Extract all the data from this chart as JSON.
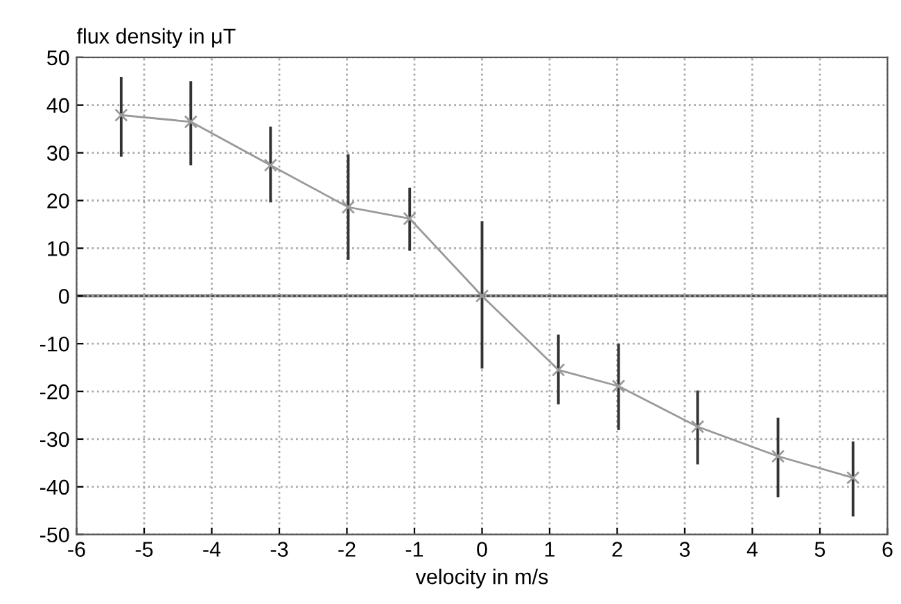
{
  "chart_data": {
    "type": "line",
    "ylabel": "flux density in μT",
    "xlabel": "velocity in m/s",
    "x": [
      -5.34,
      -4.31,
      -3.13,
      -1.98,
      -1.07,
      0,
      1.13,
      2.02,
      3.19,
      4.38,
      5.49
    ],
    "series": [
      {
        "color": "#999999",
        "values": [
          37.9,
          36.5,
          27.4,
          18.6,
          16.2,
          0,
          -15.5,
          -18.9,
          -27.4,
          -33.6,
          -38.1
        ],
        "errors": [
          [
            29.2,
            45.9
          ],
          [
            27.4,
            45
          ],
          [
            19.6,
            35.5
          ],
          [
            7.6,
            29.7
          ],
          [
            9.5,
            22.7
          ],
          [
            -15.2,
            15.7
          ],
          [
            -22.7,
            -8.1
          ],
          [
            -28.1,
            -10
          ],
          [
            -35.3,
            -19.8
          ],
          [
            -42.2,
            -25.5
          ],
          [
            -46.2,
            -30.5
          ]
        ]
      }
    ],
    "xlim": [
      -6,
      6
    ],
    "ylim": [
      -50,
      50
    ],
    "xticks": [
      -6,
      -5,
      -4,
      -3,
      -2,
      -1,
      0,
      1,
      2,
      3,
      4,
      5,
      6
    ],
    "yticks": [
      -50,
      -40,
      -30,
      -20,
      -10,
      0,
      10,
      20,
      30,
      40,
      50
    ],
    "ref_lines": [
      {
        "axis": "y",
        "value": 0,
        "color": "#555555",
        "line_style": "solid"
      }
    ],
    "grid": true,
    "marker": "cross",
    "line_style": "solid",
    "legend": false
  }
}
